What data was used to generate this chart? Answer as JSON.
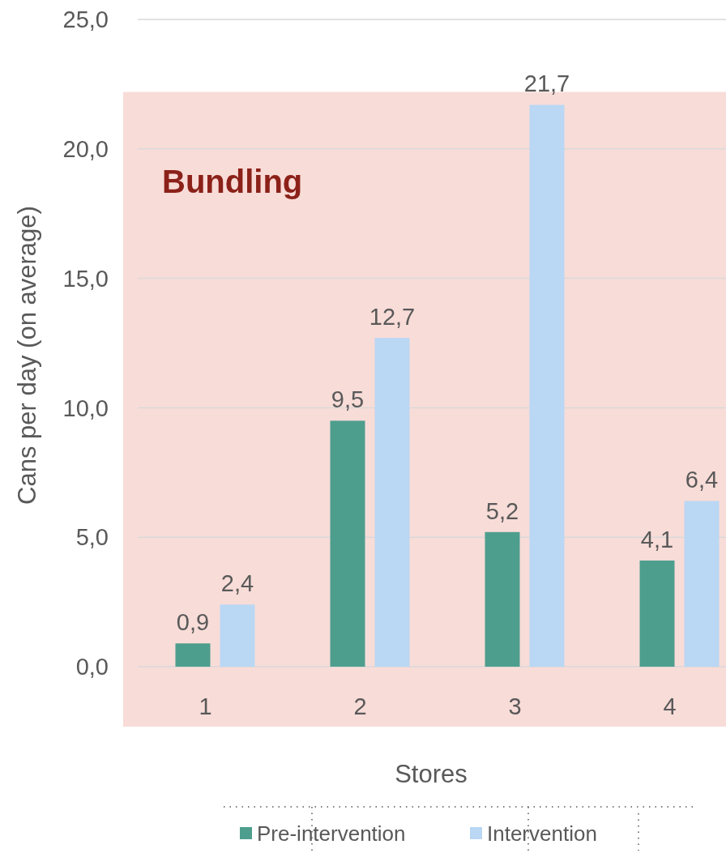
{
  "chart_data": {
    "type": "bar",
    "xlabel": "Stores",
    "ylabel": "Cans per day (on average)",
    "categories": [
      "1",
      "2",
      "3",
      "4"
    ],
    "series": [
      {
        "name": "Pre-intervention",
        "color": "#4e9e8e",
        "values": [
          0.9,
          9.5,
          5.2,
          4.1
        ],
        "value_labels": [
          "0,9",
          "9,5",
          "5,2",
          "4,1"
        ]
      },
      {
        "name": "Intervention",
        "color": "#bad7f3",
        "values": [
          2.4,
          12.7,
          21.7,
          6.4
        ],
        "value_labels": [
          "2,4",
          "12,7",
          "21,7",
          "6,4"
        ]
      }
    ],
    "ylim": [
      0,
      25
    ],
    "yticks": [
      {
        "value": 0,
        "label": "0,0"
      },
      {
        "value": 5,
        "label": "5,0"
      },
      {
        "value": 10,
        "label": "10,0"
      },
      {
        "value": 15,
        "label": "15,0"
      },
      {
        "value": 20,
        "label": "20,0"
      },
      {
        "value": 25,
        "label": "25,0"
      }
    ],
    "grid": "y",
    "legend": "bottom",
    "bands": [
      {
        "axis": "x",
        "from": "1",
        "to": "4",
        "label": "Bundling",
        "color": "#f8dcd8"
      }
    ]
  }
}
